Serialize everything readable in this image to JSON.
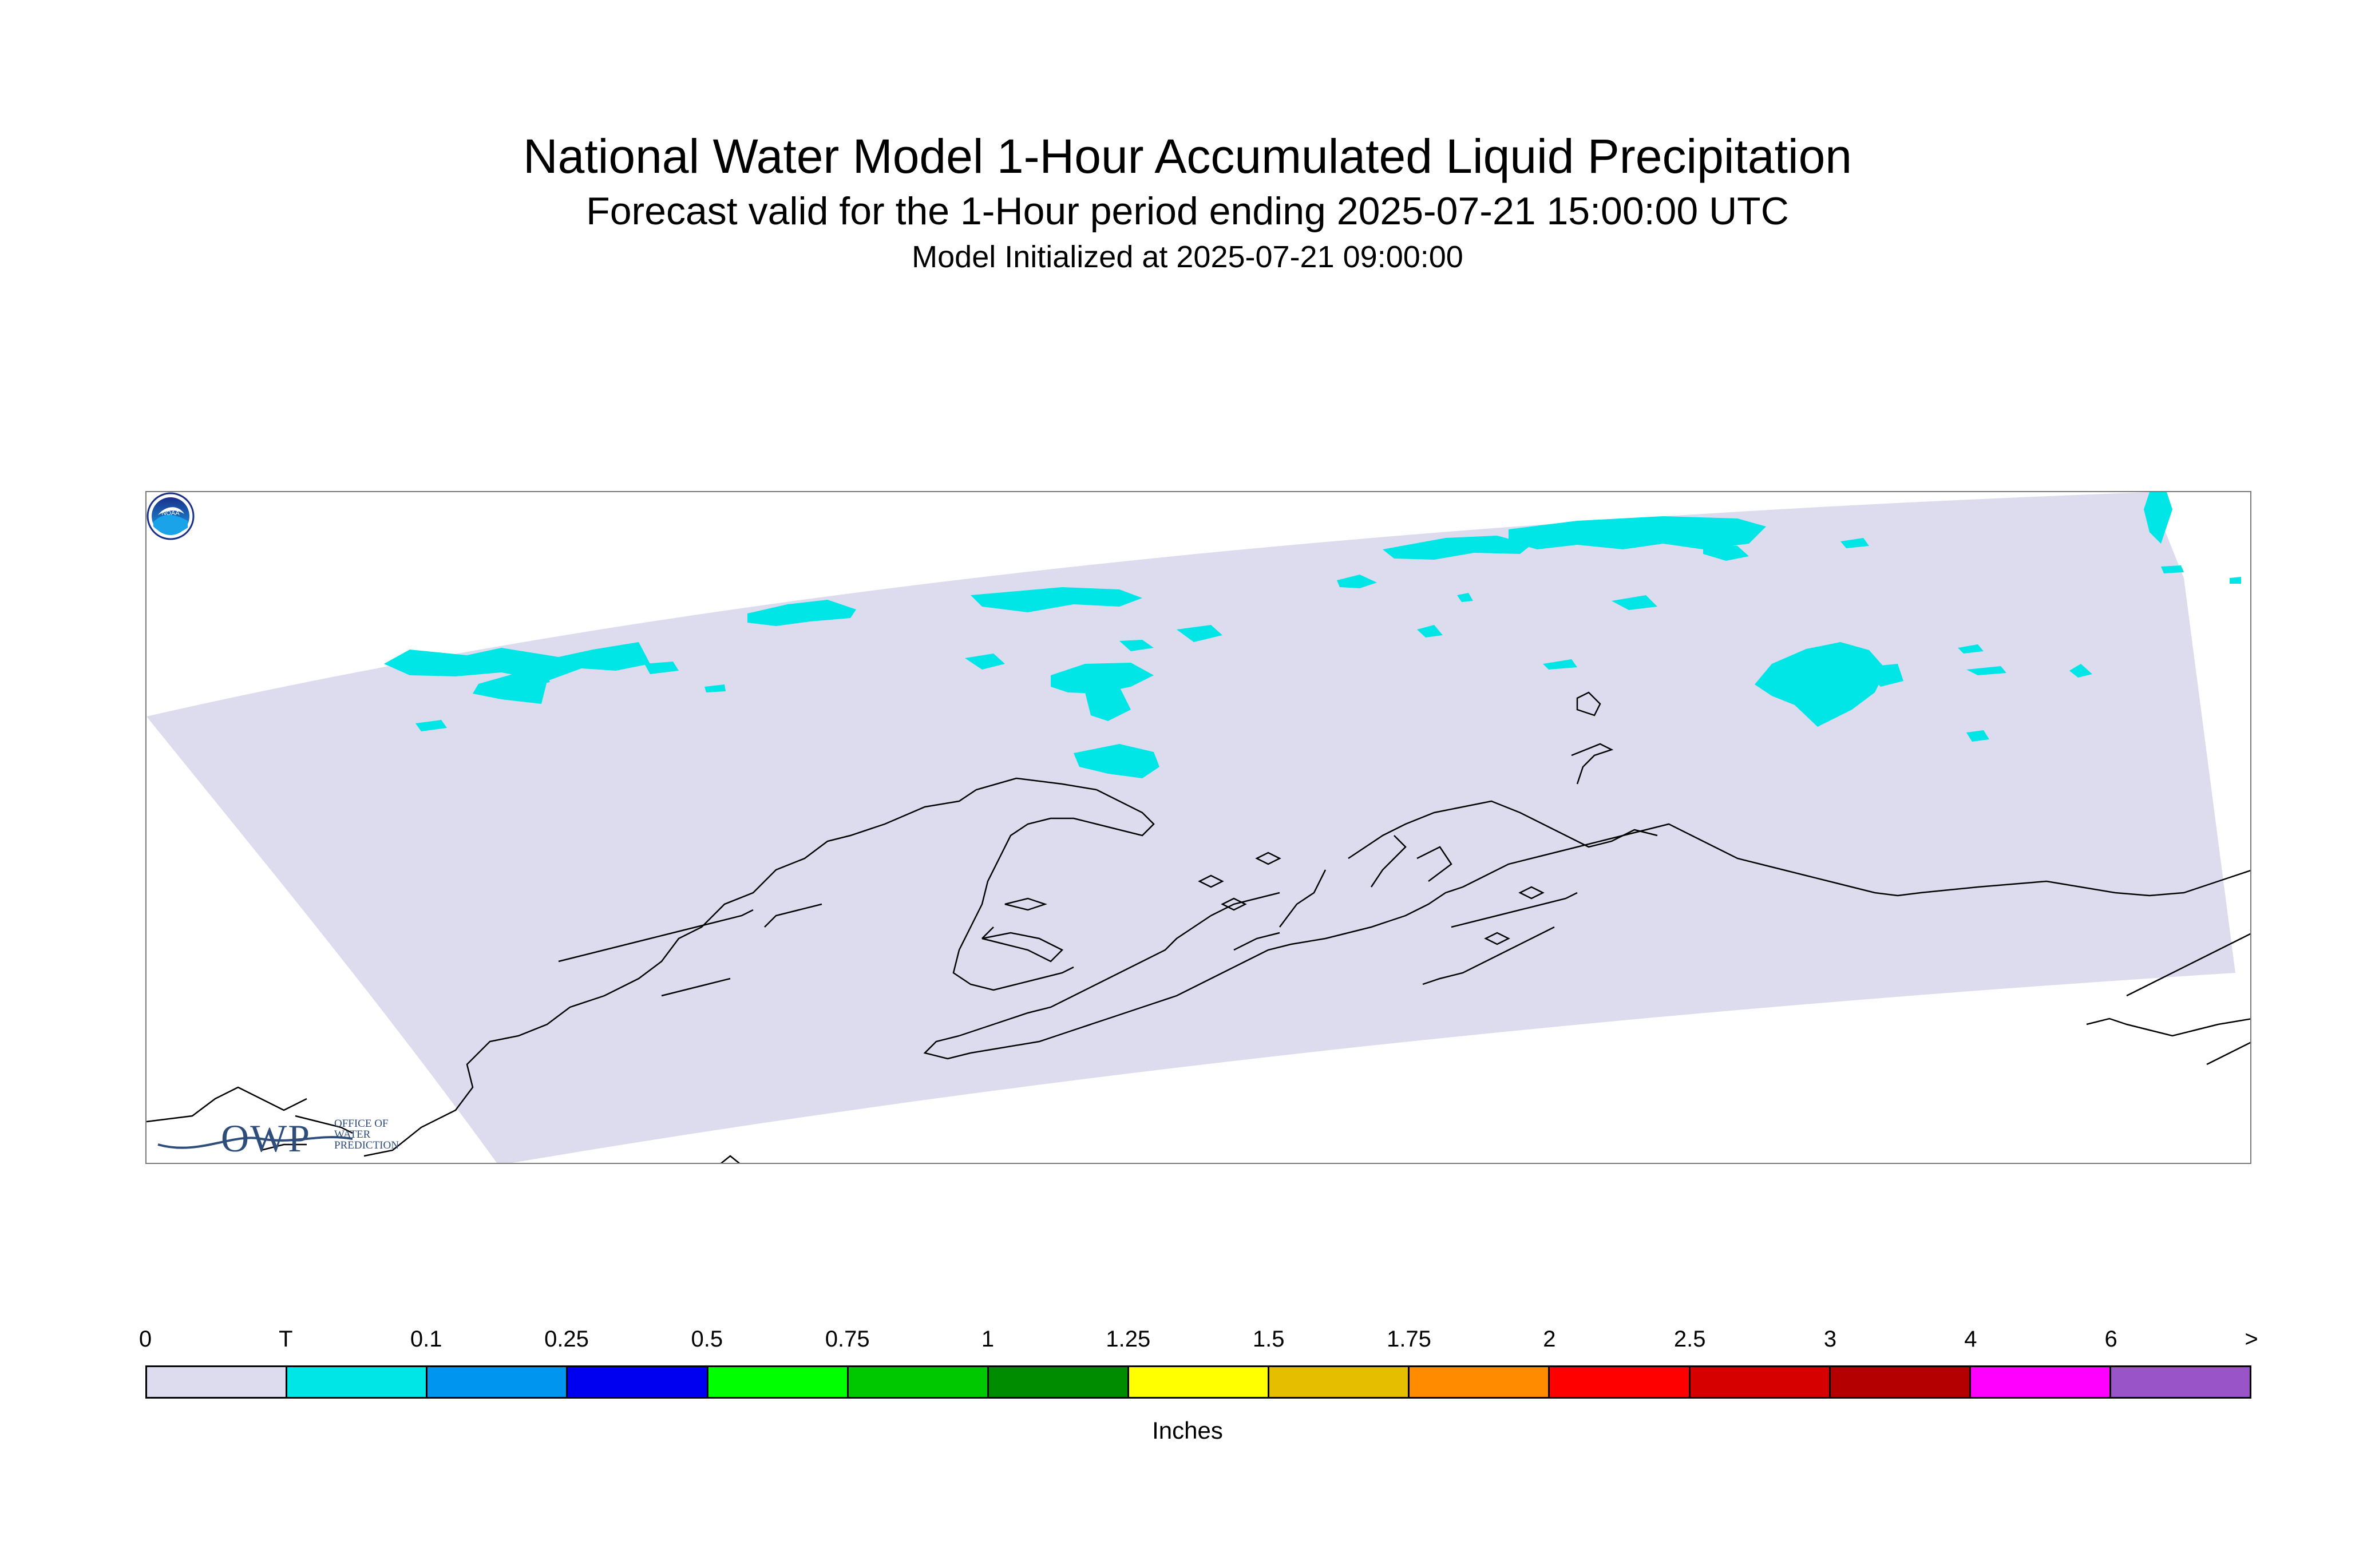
{
  "title": "National Water Model 1-Hour Accumulated Liquid Precipitation",
  "subtitle": "Forecast valid for the 1-Hour period ending 2025-07-21 15:00:00 UTC",
  "init_text": "Model Initialized at 2025-07-21 09:00:00",
  "logos": {
    "owp_mark": "OWP",
    "owp_subtitle_lines": [
      "OFFICE OF",
      "WATER",
      "PREDICTION"
    ],
    "noaa_mark": "NOAA"
  },
  "legend": {
    "units": "Inches",
    "labels": [
      "0",
      "T",
      "0.1",
      "0.25",
      "0.5",
      "0.75",
      "1",
      "1.25",
      "1.5",
      "1.75",
      "2",
      "2.5",
      "3",
      "4",
      "6",
      ">"
    ],
    "colors": [
      "#dcdcee",
      "#00e5e5",
      "#0096f0",
      "#0000f0",
      "#00ff00",
      "#00c800",
      "#008c00",
      "#ffff00",
      "#e6be00",
      "#ff8c00",
      "#ff0000",
      "#d70000",
      "#b40000",
      "#ff00ff",
      "#9955c8"
    ]
  },
  "colors": {
    "no_precip": "#dcdcee",
    "trace": "#00e5e5",
    "coastline": "#000000",
    "map_border": "#7a7a7a",
    "owp_blue": "#2e4d7b"
  }
}
